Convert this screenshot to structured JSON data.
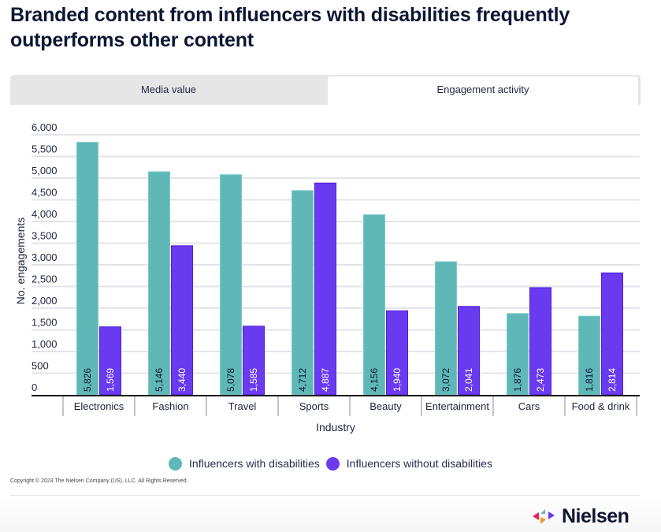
{
  "page": {
    "title": "Branded content from influencers with disabilities frequently outperforms other content",
    "tabs": [
      {
        "label": "Media value",
        "active": false
      },
      {
        "label": "Engagement activity",
        "active": true
      }
    ],
    "copyright": "Copyright © 2023 The Nielsen Company (US), LLC. All Rights Reserved.",
    "logo": {
      "name": "Nielsen-logo",
      "word": "Nielsen"
    }
  },
  "colors": {
    "with": "#5fb8b7",
    "with_border": "#7ccac8",
    "without": "#6a3af0",
    "without_border": "#4f20d8",
    "grid": "#e3e4ea",
    "axis": "#1a1a1a",
    "logo_red": "#e0264e",
    "logo_teal": "#5fb8b7",
    "logo_purple": "#6a3af0",
    "logo_orange": "#f39a2e"
  },
  "chart_data": {
    "type": "bar",
    "title": "Branded content from influencers with disabilities frequently outperforms other content",
    "xlabel": "Industry",
    "ylabel": "No. engagements",
    "ylim": [
      0,
      6000
    ],
    "yticks": [
      0,
      500,
      1000,
      1500,
      2000,
      2500,
      3000,
      3500,
      4000,
      4500,
      5000,
      5500,
      6000
    ],
    "ytick_labels": [
      "0",
      "500",
      "1,000",
      "1,500",
      "2,000",
      "2,500",
      "3,000",
      "3,500",
      "4,000",
      "4,500",
      "5,000",
      "5,500",
      "6,000"
    ],
    "grid": true,
    "legend_position": "bottom",
    "categories": [
      "Electronics",
      "Fashion",
      "Travel",
      "Sports",
      "Beauty",
      "Entertainment",
      "Cars",
      "Food & drink"
    ],
    "series": [
      {
        "name": "Influencers with disabilities",
        "values": [
          5826,
          5146,
          5078,
          4712,
          4156,
          3072,
          1876,
          1816
        ],
        "labels": [
          "5,826",
          "5,146",
          "5,078",
          "4,712",
          "4,156",
          "3,072",
          "1,876",
          "1,816"
        ]
      },
      {
        "name": "Influencers without disabilities",
        "values": [
          1569,
          3440,
          1585,
          4887,
          1940,
          2041,
          2473,
          2814
        ],
        "labels": [
          "1,569",
          "3,440",
          "1,585",
          "4,887",
          "1,940",
          "2,041",
          "2,473",
          "2,814"
        ]
      }
    ]
  }
}
